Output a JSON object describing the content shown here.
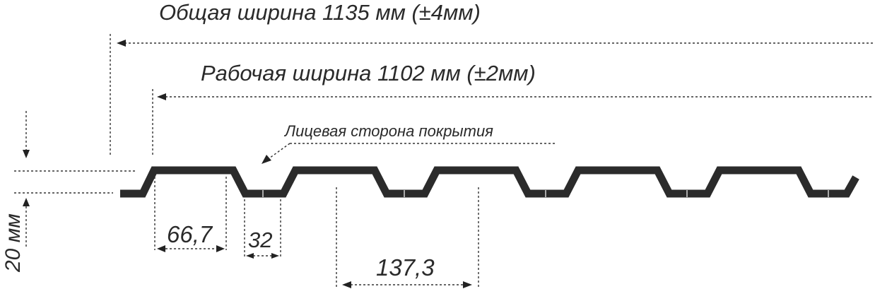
{
  "labels": {
    "total_width": "Общая ширина 1135 мм  (±4мм)",
    "working_width": "Рабочая ширина 1102 мм  (±2мм)",
    "face_side": "Лицевая сторона покрытия",
    "height": "20 мм",
    "top_flat": "66,7",
    "bottom_flat": "32",
    "pitch": "137,3"
  },
  "colors": {
    "profile": "#2b2b2b",
    "text": "#2a2a2a"
  }
}
